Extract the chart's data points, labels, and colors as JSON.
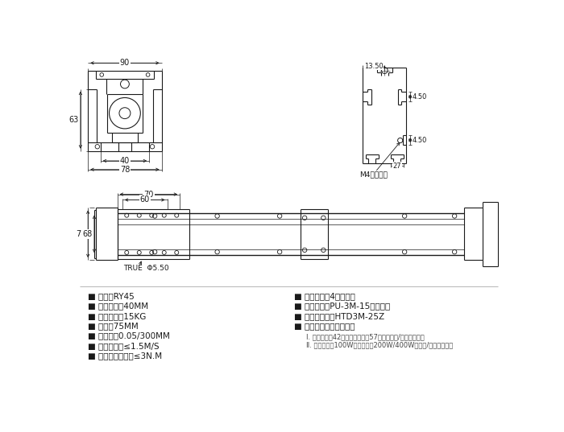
{
  "bg_color": "#ffffff",
  "line_color": "#1a1a1a",
  "text_color": "#1a1a1a",
  "specs_left": [
    "■ 型号：RY45",
    "■ 轨梁宽度：40MM",
    "■ 参考负载：15KG",
    "■ 导程：75MM",
    "■ 直线度：0.05/300MM",
    "■ 建议速度：≤1.5M/S",
    "■ 适用输入扮矩：≤3N.M"
  ],
  "specs_right": [
    "■ 可配长度：4米内定制",
    "■ 皮带规格：PU-3M-15（锂丝）",
    "■ 同步轮规格：HTD3M-25Z",
    "■ 可配电机及连接方式："
  ],
  "motor_notes": [
    "Ⅰ. 步进电机：42步进（直连）；57步进（直连/大小轮减速）",
    "Ⅱ. 伺服电机：100W（直连）；200W/400W（直连/大小轮减速）"
  ]
}
